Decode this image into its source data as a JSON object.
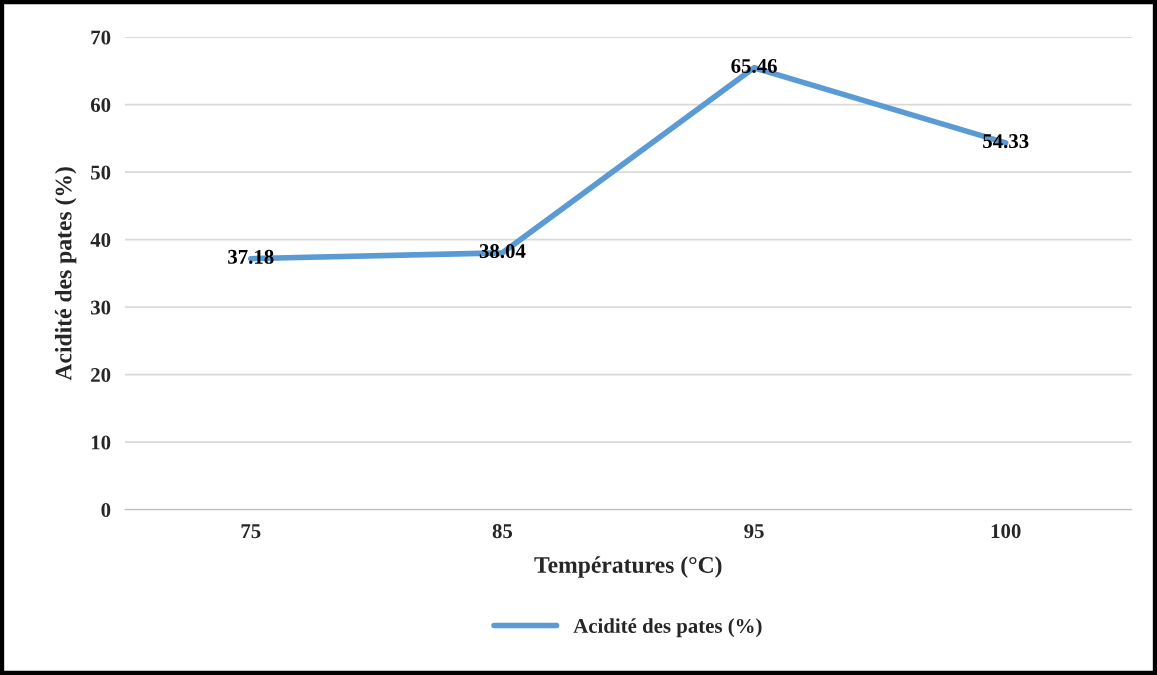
{
  "chart_data": {
    "type": "line",
    "xlabel": "Températures (°C)",
    "ylabel": "Acidité des pates (%)",
    "categories": [
      "75",
      "85",
      "95",
      "100"
    ],
    "series": [
      {
        "name": "Acidité des pates (%)",
        "color": "#5b9bd5",
        "values": [
          37.18,
          38.04,
          65.46,
          54.33
        ]
      }
    ],
    "ylim": [
      0,
      70
    ],
    "yticks": [
      0,
      10,
      20,
      30,
      40,
      50,
      60,
      70
    ],
    "data_labels": true,
    "grid": "y",
    "legend": "bottom",
    "marker": "none",
    "line_style": "solid"
  }
}
